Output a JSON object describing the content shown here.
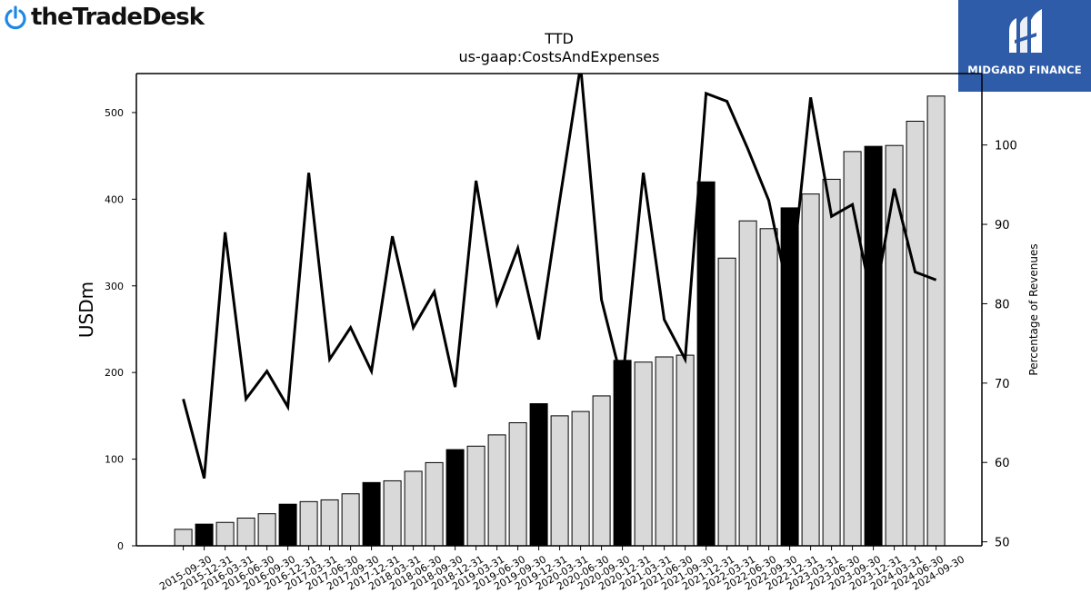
{
  "brand": {
    "company_logo_text": "theTradeDesk",
    "sponsor_logo_text": "MIDGARD FINANCE"
  },
  "chart_data": {
    "type": "bar",
    "title": "TTD",
    "subtitle": "us-gaap:CostsAndExpenses",
    "ylabel": "USDm",
    "y2label": "Percentage of Revenues",
    "ylim": [
      0,
      545
    ],
    "y2lim": [
      49.5,
      109
    ],
    "yticks": [
      0,
      100,
      200,
      300,
      400,
      500
    ],
    "y2ticks": [
      50,
      60,
      70,
      80,
      90,
      100
    ],
    "categories": [
      "2015-09-30",
      "2015-12-31",
      "2016-03-31",
      "2016-06-30",
      "2016-09-30",
      "2016-12-31",
      "2017-03-31",
      "2017-06-30",
      "2017-09-30",
      "2017-12-31",
      "2018-03-31",
      "2018-06-30",
      "2018-09-30",
      "2018-12-31",
      "2019-03-31",
      "2019-06-30",
      "2019-09-30",
      "2019-12-31",
      "2020-03-31",
      "2020-06-30",
      "2020-09-30",
      "2020-12-31",
      "2021-03-31",
      "2021-06-30",
      "2021-09-30",
      "2021-12-31",
      "2022-03-31",
      "2022-06-30",
      "2022-09-30",
      "2022-12-31",
      "2023-03-31",
      "2023-06-30",
      "2023-09-30",
      "2023-12-31",
      "2024-03-31",
      "2024-06-30",
      "2024-09-30"
    ],
    "series": [
      {
        "kind": "bar",
        "values": [
          19,
          25,
          27,
          32,
          37,
          48,
          51,
          53,
          60,
          73,
          75,
          86,
          96,
          111,
          115,
          128,
          142,
          164,
          150,
          155,
          173,
          214,
          212,
          218,
          220,
          420,
          332,
          375,
          366,
          390,
          406,
          423,
          455,
          461,
          462,
          490,
          519
        ],
        "highlight": [
          false,
          true,
          false,
          false,
          false,
          true,
          false,
          false,
          false,
          true,
          false,
          false,
          false,
          true,
          false,
          false,
          false,
          true,
          false,
          false,
          false,
          true,
          false,
          false,
          false,
          true,
          false,
          false,
          false,
          true,
          false,
          false,
          false,
          true,
          false,
          false,
          false
        ]
      },
      {
        "kind": "line",
        "axis": "right",
        "values": [
          68,
          58,
          89,
          68,
          71.5,
          67,
          96.5,
          73,
          77,
          71.5,
          88.5,
          77,
          81.5,
          69.5,
          95.5,
          80,
          87,
          75.5,
          93,
          110,
          80.5,
          70,
          96.5,
          78,
          73,
          106.5,
          105.5,
          99.5,
          93,
          80.5,
          106,
          91,
          92.5,
          79.5,
          94.5,
          84,
          83
        ]
      }
    ],
    "colors": {
      "bar_default": "#d9d9d9",
      "bar_highlight": "#000000",
      "line": "#000000",
      "sponsor_bg": "#2f5ca8",
      "logo_blue": "#1e88e5"
    },
    "grid": false,
    "legend": "none"
  }
}
